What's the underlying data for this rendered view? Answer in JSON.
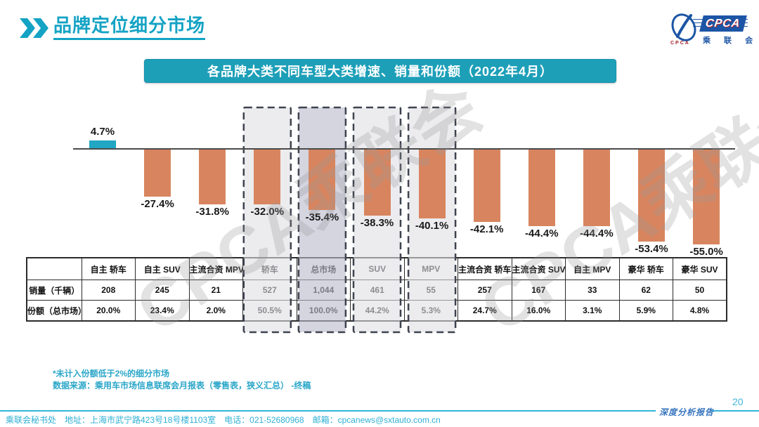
{
  "header": {
    "title": "品牌定位细分市场"
  },
  "logo": {
    "org_en": "CPCA",
    "org_cn": "乘 联 会",
    "emblem_caption": "CPCA"
  },
  "banner": {
    "text": "各品牌大类不同车型大类增速、销量和份额（2022年4月）"
  },
  "chart_data": {
    "type": "bar",
    "title": "各品牌大类不同车型大类增速、销量和份额（2022年4月）",
    "categories": [
      "自主 轿车",
      "自主 SUV",
      "主流合资 MPV",
      "轿车",
      "总市场",
      "SUV",
      "MPV",
      "主流合资 轿车",
      "主流合资 SUV",
      "自主 MPV",
      "豪华 轿车",
      "豪华 SUV"
    ],
    "values": [
      4.7,
      -27.4,
      -31.8,
      -32.0,
      -35.4,
      -38.3,
      -40.1,
      -42.1,
      -44.4,
      -44.4,
      -53.4,
      -55.0
    ],
    "labels": [
      "4.7%",
      "-27.4%",
      "-31.8%",
      "-32.0%",
      "-35.4%",
      "-38.3%",
      "-40.1%",
      "-42.1%",
      "-44.4%",
      "-44.4%",
      "-53.4%",
      "-55.0%"
    ],
    "highlighted_indices": [
      3,
      4,
      5,
      6
    ],
    "emphasis_index": 4,
    "positive_color": "#21a6c4",
    "negative_color": "#d8855f",
    "highlight_fill": "rgba(223,223,229,0.60)",
    "emphasis_fill": "rgba(185,187,204,0.62)",
    "baseline": 0,
    "ylim": [
      -60,
      10
    ],
    "grid": false,
    "legend": "none",
    "xlabel": "",
    "ylabel": ""
  },
  "table": {
    "corner": "",
    "row_headers": [
      "销量（千辆）",
      "份额（总市场）"
    ],
    "columns": [
      {
        "header": "自主 轿车",
        "sales": "208",
        "share": "20.0%"
      },
      {
        "header": "自主 SUV",
        "sales": "245",
        "share": "23.4%"
      },
      {
        "header": "主流合资 MPV",
        "sales": "21",
        "share": "2.0%"
      },
      {
        "header": "轿车",
        "sales": "527",
        "share": "50.5%"
      },
      {
        "header": "总市场",
        "sales": "1,044",
        "share": "100.0%"
      },
      {
        "header": "SUV",
        "sales": "461",
        "share": "44.2%"
      },
      {
        "header": "MPV",
        "sales": "55",
        "share": "5.3%"
      },
      {
        "header": "主流合资 轿车",
        "sales": "257",
        "share": "24.7%"
      },
      {
        "header": "主流合资 SUV",
        "sales": "167",
        "share": "16.0%"
      },
      {
        "header": "自主 MPV",
        "sales": "33",
        "share": "3.1%"
      },
      {
        "header": "豪华 轿车",
        "sales": "62",
        "share": "5.9%"
      },
      {
        "header": "豪华 SUV",
        "sales": "50",
        "share": "4.8%"
      }
    ]
  },
  "watermark": {
    "text": "CPCA乘联会"
  },
  "notes": {
    "line1": "*未计入份额低于2%的细分市场",
    "line2": "数据来源：乘用车市场信息联席会月报表（零售表，狭义汇总） -终稿"
  },
  "footer": {
    "contact": "乘联会秘书处　地址：上海市武宁路423号18号楼1103室　电话：021-52680968　邮箱：cpcanews@sxtauto.com.cn",
    "report_label": "深度分析报告",
    "page": "20"
  }
}
